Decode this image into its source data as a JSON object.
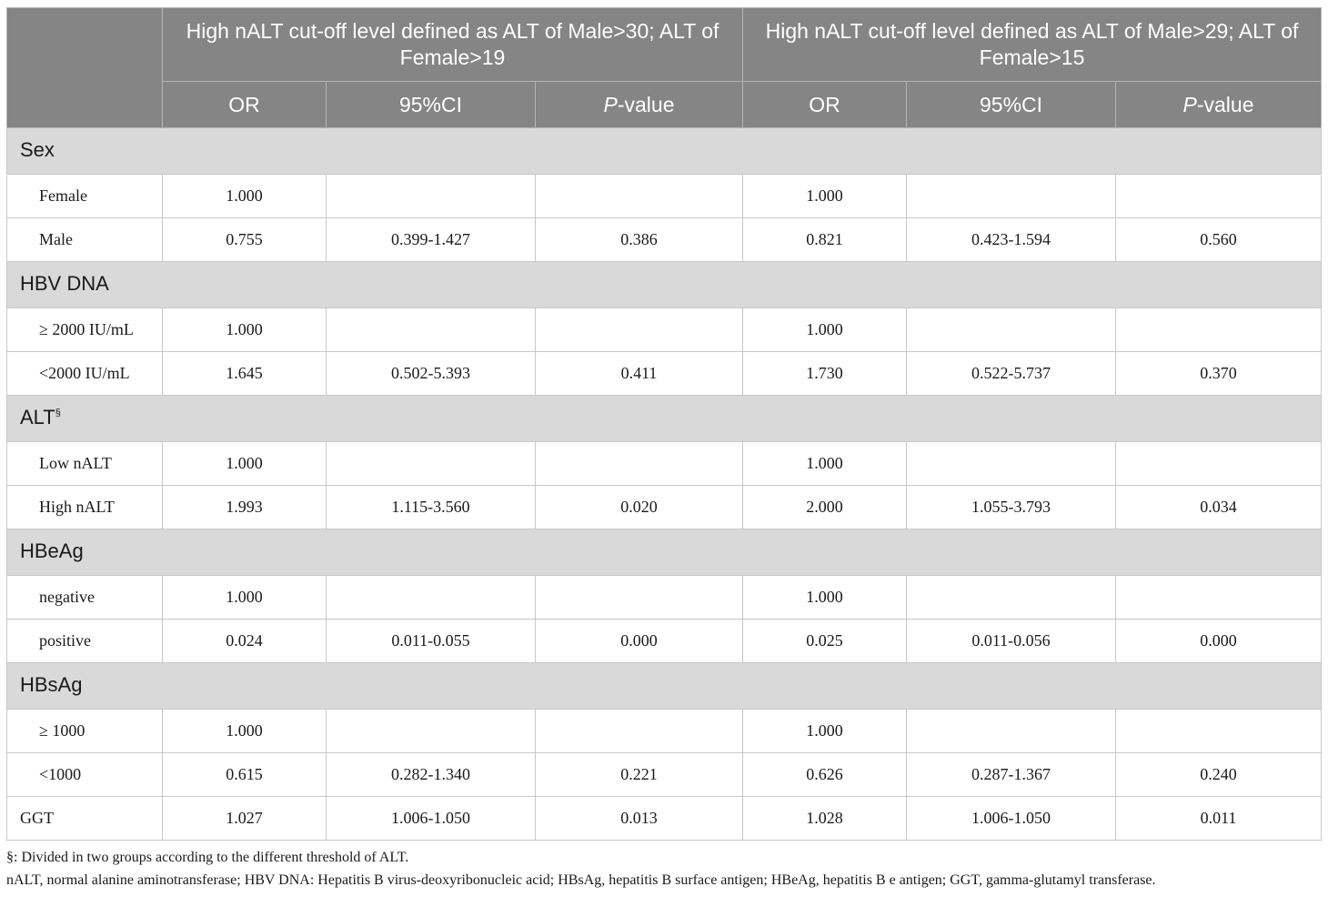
{
  "header": {
    "group1": "High nALT cut-off level defined as ALT of Male>30; ALT of Female>19",
    "group2": "High nALT cut-off level defined as ALT of Male>29; ALT of Female>15",
    "col_or": "OR",
    "col_ci": "95%CI",
    "col_p_italic": "P",
    "col_p_suffix": "-value"
  },
  "sections": {
    "sex": {
      "title": "Sex",
      "rows": [
        {
          "label": "Female",
          "or1": "1.000",
          "ci1": "",
          "p1": "",
          "or2": "1.000",
          "ci2": "",
          "p2": ""
        },
        {
          "label": "Male",
          "or1": "0.755",
          "ci1": "0.399-1.427",
          "p1": "0.386",
          "or2": "0.821",
          "ci2": "0.423-1.594",
          "p2": "0.560"
        }
      ]
    },
    "hbv": {
      "title": "HBV DNA",
      "rows": [
        {
          "label": "≥ 2000 IU/mL",
          "or1": "1.000",
          "ci1": "",
          "p1": "",
          "or2": "1.000",
          "ci2": "",
          "p2": ""
        },
        {
          "label": "<2000 IU/mL",
          "or1": "1.645",
          "ci1": "0.502-5.393",
          "p1": "0.411",
          "or2": "1.730",
          "ci2": "0.522-5.737",
          "p2": "0.370"
        }
      ]
    },
    "alt": {
      "title": "ALT",
      "sup": "§",
      "rows": [
        {
          "label": "Low nALT",
          "or1": "1.000",
          "ci1": "",
          "p1": "",
          "or2": "1.000",
          "ci2": "",
          "p2": ""
        },
        {
          "label": "High nALT",
          "or1": "1.993",
          "ci1": "1.115-3.560",
          "p1": "0.020",
          "or2": "2.000",
          "ci2": "1.055-3.793",
          "p2": "0.034"
        }
      ]
    },
    "hbeag": {
      "title": "HBeAg",
      "rows": [
        {
          "label": "negative",
          "or1": "1.000",
          "ci1": "",
          "p1": "",
          "or2": "1.000",
          "ci2": "",
          "p2": ""
        },
        {
          "label": "positive",
          "or1": "0.024",
          "ci1": "0.011-0.055",
          "p1": "0.000",
          "or2": "0.025",
          "ci2": "0.011-0.056",
          "p2": "0.000"
        }
      ]
    },
    "hbsag": {
      "title": "HBsAg",
      "rows": [
        {
          "label": "≥ 1000",
          "or1": "1.000",
          "ci1": "",
          "p1": "",
          "or2": "1.000",
          "ci2": "",
          "p2": ""
        },
        {
          "label": "<1000",
          "or1": "0.615",
          "ci1": "0.282-1.340",
          "p1": "0.221",
          "or2": "0.626",
          "ci2": "0.287-1.367",
          "p2": "0.240"
        }
      ]
    }
  },
  "ggt": {
    "label": "GGT",
    "or1": "1.027",
    "ci1": "1.006-1.050",
    "p1": "0.013",
    "or2": "1.028",
    "ci2": "1.006-1.050",
    "p2": "0.011"
  },
  "notes": {
    "line1": "§: Divided in two groups according to the different threshold of ALT.",
    "line2": "nALT, normal alanine aminotransferase; HBV DNA: Hepatitis B virus-deoxyribonucleic acid; HBsAg, hepatitis B surface antigen; HBeAg, hepatitis B e antigen; GGT, gamma-glutamyl transferase."
  }
}
